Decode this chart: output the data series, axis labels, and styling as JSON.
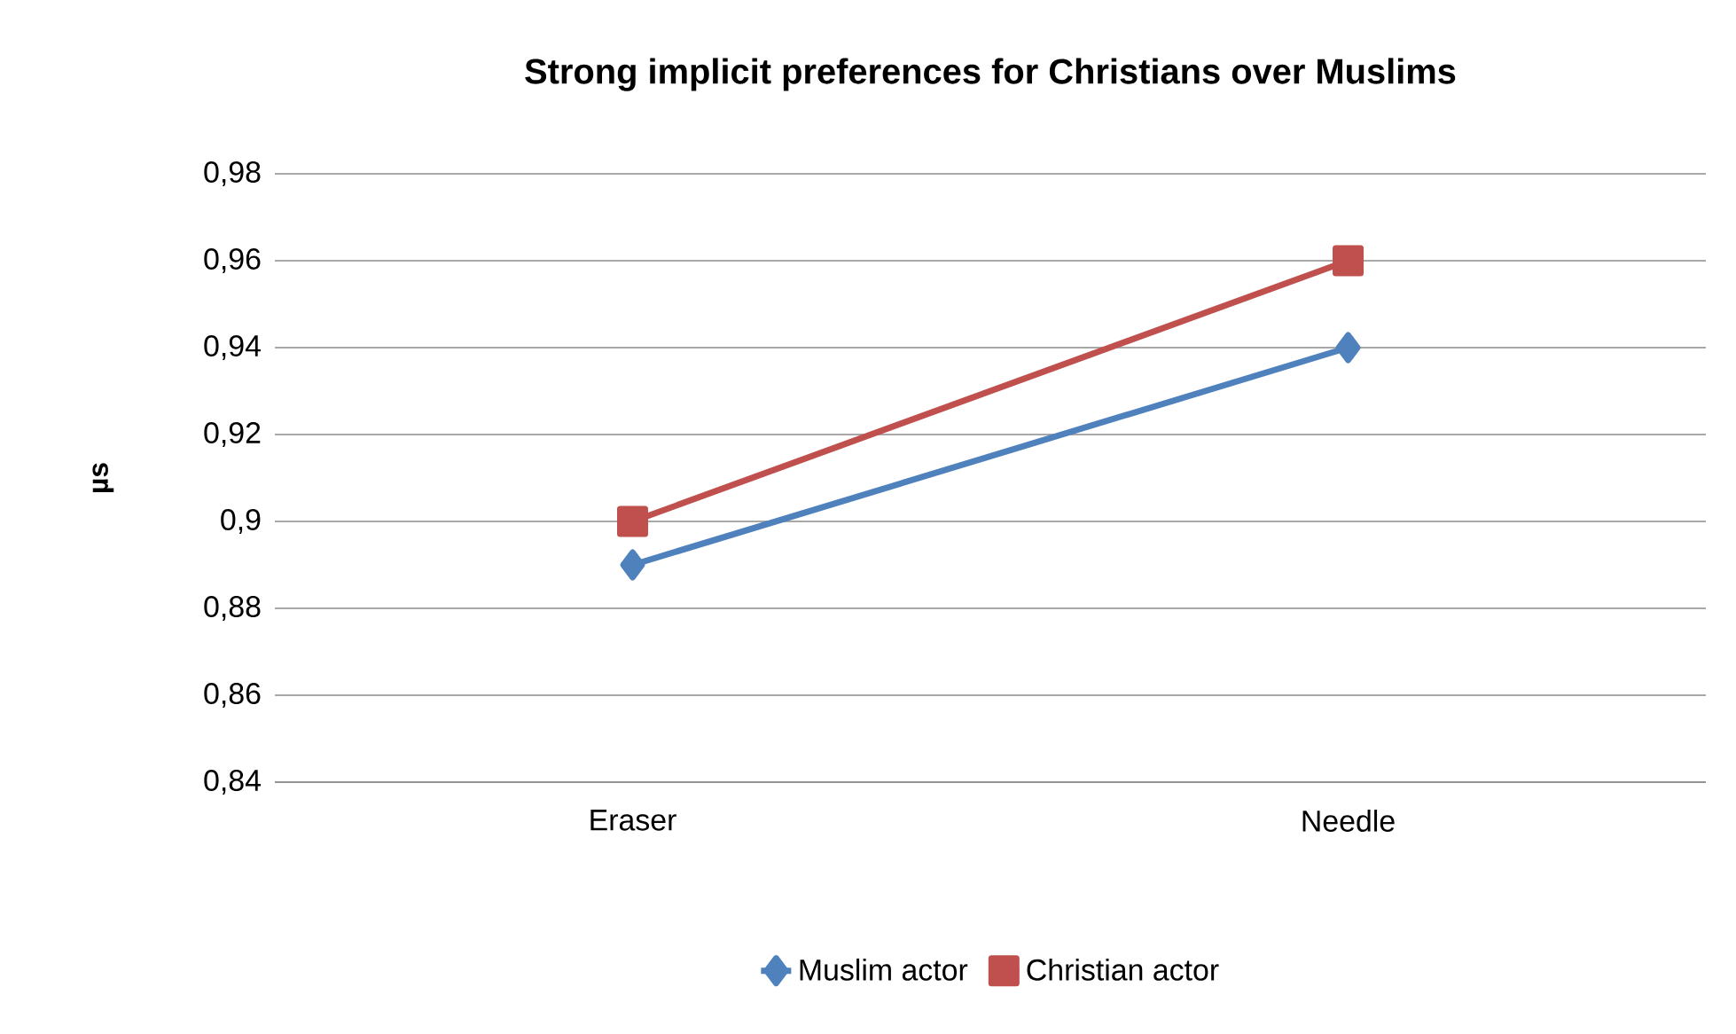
{
  "chart_data": {
    "type": "line",
    "title": "Strong implicit preferences for Christians over Muslims",
    "ylabel": "µs",
    "categories": [
      "Eraser",
      "Needle"
    ],
    "series": [
      {
        "name": "Muslim actor",
        "color": "#4f81bd",
        "marker": "diamond",
        "values": [
          0.89,
          0.94
        ]
      },
      {
        "name": "Christian actor",
        "color": "#c0504d",
        "marker": "square",
        "values": [
          0.9,
          0.96
        ]
      }
    ],
    "ylim": [
      0.84,
      0.98
    ],
    "yticks": [
      {
        "value": 0.84,
        "label": "0,84"
      },
      {
        "value": 0.86,
        "label": "0,86"
      },
      {
        "value": 0.88,
        "label": "0,88"
      },
      {
        "value": 0.9,
        "label": "0,9"
      },
      {
        "value": 0.92,
        "label": "0,92"
      },
      {
        "value": 0.94,
        "label": "0,94"
      },
      {
        "value": 0.96,
        "label": "0,96"
      },
      {
        "value": 0.98,
        "label": "0,98"
      }
    ],
    "grid": "y",
    "legend": "bottom",
    "line_style": "solid"
  }
}
